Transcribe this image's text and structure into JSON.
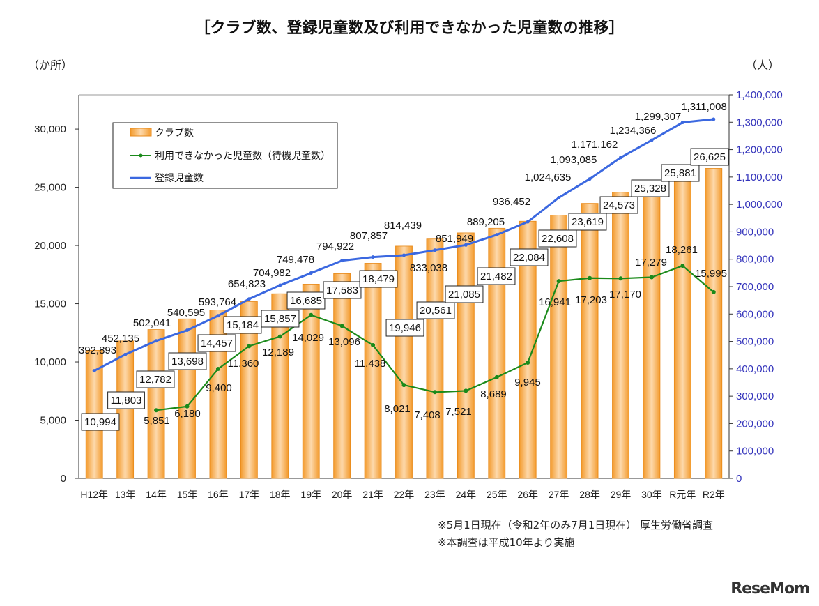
{
  "chart_data": {
    "type": "bar+line",
    "title": "［クラブ数、登録児童数及び利用できなかった児童数の推移］",
    "ylabel_left": "（か所）",
    "ylabel_right": "（人）",
    "categories": [
      "H12年",
      "13年",
      "14年",
      "15年",
      "16年",
      "17年",
      "18年",
      "19年",
      "20年",
      "21年",
      "22年",
      "23年",
      "24年",
      "25年",
      "26年",
      "27年",
      "28年",
      "29年",
      "30年",
      "R元年",
      "R2年"
    ],
    "ylim_left": [
      0,
      32940
    ],
    "yticks_left": [
      0,
      5000,
      10000,
      15000,
      20000,
      25000,
      30000
    ],
    "ylim_right": [
      0,
      1400000
    ],
    "yticks_right": [
      0,
      100000,
      200000,
      300000,
      400000,
      500000,
      600000,
      700000,
      800000,
      900000,
      1000000,
      1100000,
      1200000,
      1300000,
      1400000
    ],
    "legend_position": "top-left",
    "grid": false,
    "series": [
      {
        "name": "クラブ数",
        "type": "bar",
        "axis": "left",
        "color": "#f5a03a",
        "values": [
          10994,
          11803,
          12782,
          13698,
          14457,
          15184,
          15857,
          16685,
          17583,
          18479,
          19946,
          20561,
          21085,
          21482,
          22084,
          22608,
          23619,
          24573,
          25328,
          25881,
          26625
        ]
      },
      {
        "name": "利用できなかった児童数（待機児童数）",
        "type": "line",
        "axis": "left",
        "color": "#1a8a1a",
        "values": [
          null,
          null,
          5851,
          6180,
          9400,
          11360,
          12189,
          14029,
          13096,
          11438,
          8021,
          7408,
          7521,
          8689,
          9945,
          16941,
          17203,
          17170,
          17279,
          18261,
          15995
        ]
      },
      {
        "name": "登録児童数",
        "type": "line",
        "axis": "right",
        "color": "#3b68e0",
        "values": [
          392893,
          452135,
          502041,
          540595,
          593764,
          654823,
          704982,
          749478,
          794922,
          807857,
          814439,
          833038,
          851949,
          889205,
          936452,
          1024635,
          1093085,
          1171162,
          1234366,
          1299307,
          1311008
        ]
      }
    ]
  },
  "notes": [
    "※5月1日現在（令和2年のみ7月1日現在） 厚生労働省調査",
    "※本調査は平成10年より実施"
  ],
  "logo": "ReseMom"
}
